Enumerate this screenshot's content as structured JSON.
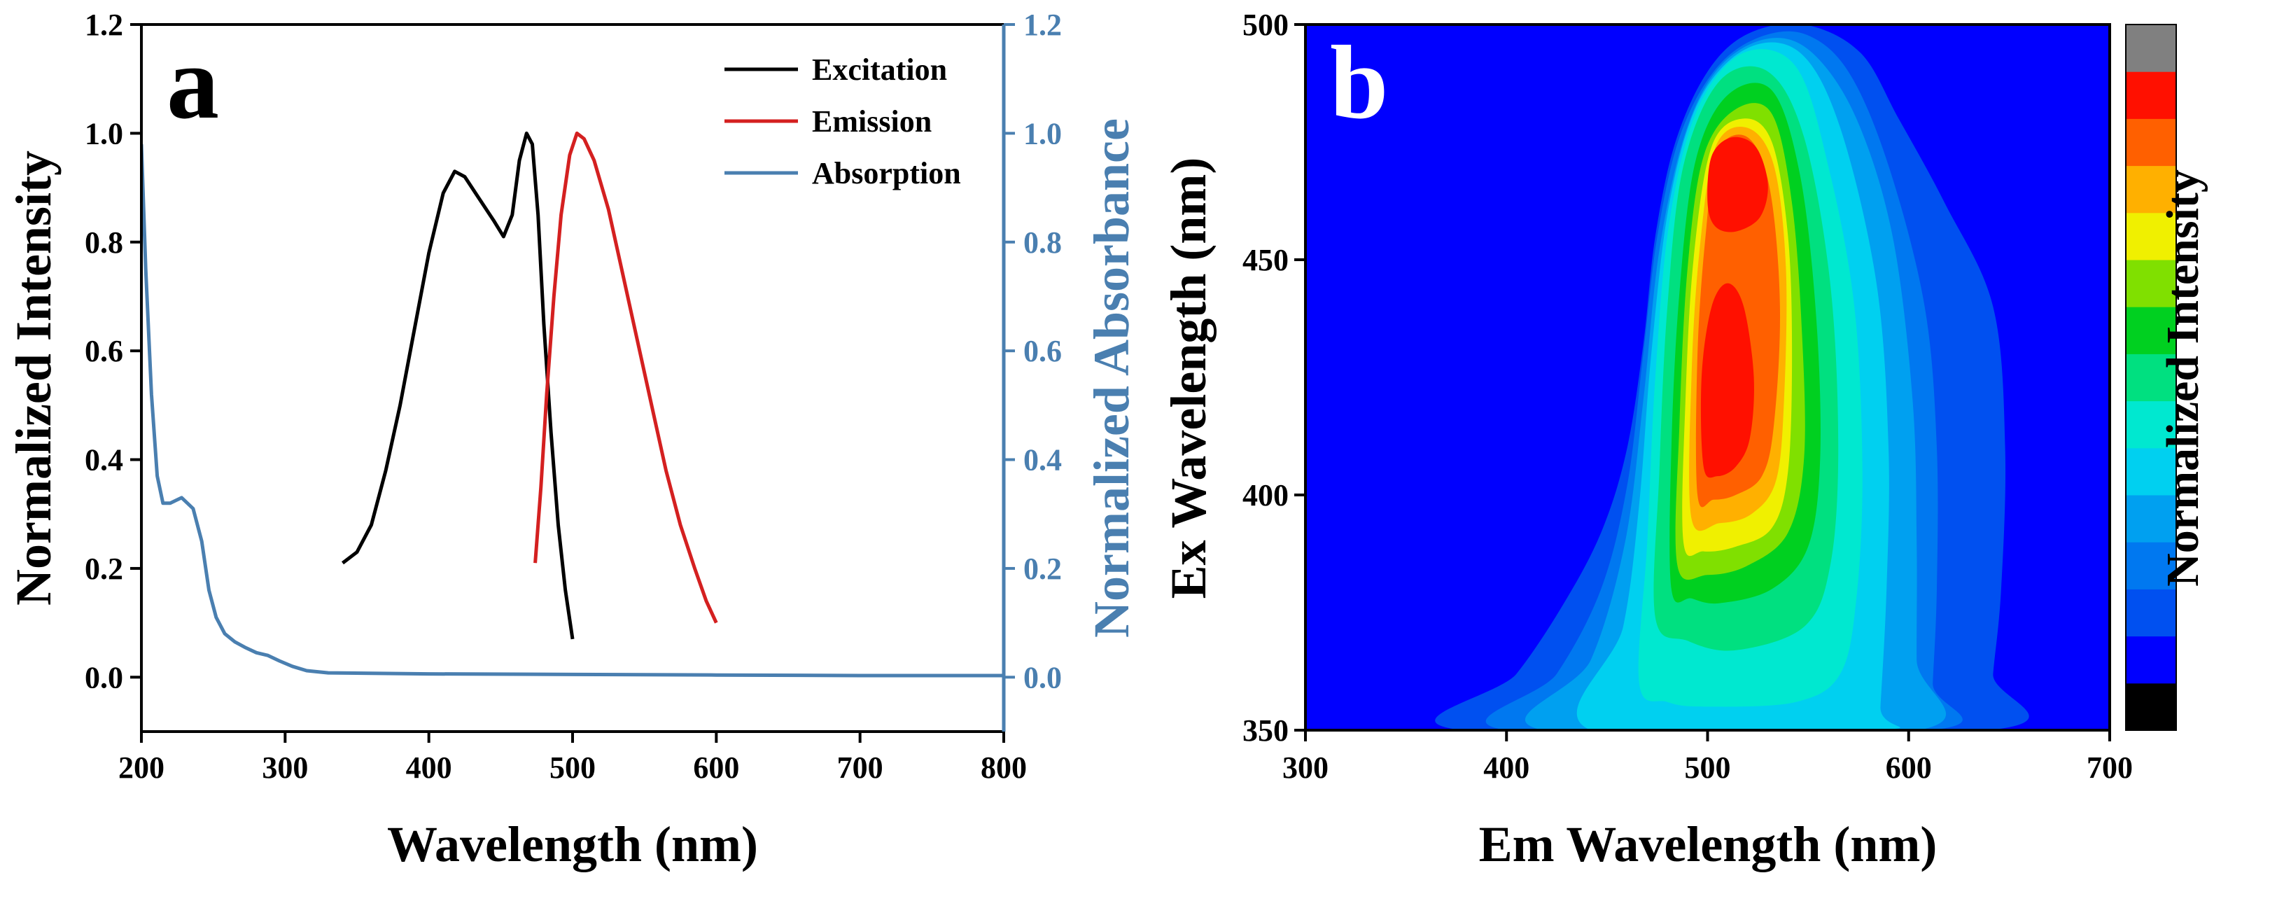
{
  "chart_data": [
    {
      "type": "line",
      "panel_label": "a",
      "xlabel": "Wavelength (nm)",
      "ylabel": "Normalized Intensity",
      "y2label": "Normalized Absorbance",
      "xlim": [
        200,
        800
      ],
      "ylim": [
        -0.1,
        1.2
      ],
      "y2lim": [
        -0.1,
        1.2
      ],
      "xticks": [
        "200",
        "300",
        "400",
        "500",
        "600",
        "700",
        "800"
      ],
      "yticks": [
        "0.0",
        "0.2",
        "0.4",
        "0.6",
        "0.8",
        "1.0",
        "1.2"
      ],
      "y2ticks": [
        "0.0",
        "0.2",
        "0.4",
        "0.6",
        "0.8",
        "1.0",
        "1.2"
      ],
      "legend_position": "top-right",
      "colors": {
        "axis_right": "#4a7fb0",
        "text": "#000000"
      },
      "series": [
        {
          "name": "Excitation",
          "color": "#000000",
          "axis": "left",
          "points": [
            [
              340,
              0.21
            ],
            [
              350,
              0.23
            ],
            [
              360,
              0.28
            ],
            [
              370,
              0.38
            ],
            [
              380,
              0.5
            ],
            [
              390,
              0.64
            ],
            [
              400,
              0.78
            ],
            [
              410,
              0.89
            ],
            [
              418,
              0.93
            ],
            [
              425,
              0.92
            ],
            [
              435,
              0.88
            ],
            [
              445,
              0.84
            ],
            [
              452,
              0.81
            ],
            [
              458,
              0.85
            ],
            [
              463,
              0.95
            ],
            [
              468,
              1.0
            ],
            [
              472,
              0.98
            ],
            [
              476,
              0.85
            ],
            [
              480,
              0.65
            ],
            [
              485,
              0.45
            ],
            [
              490,
              0.28
            ],
            [
              495,
              0.16
            ],
            [
              500,
              0.07
            ]
          ]
        },
        {
          "name": "Emission",
          "color": "#d42020",
          "axis": "left",
          "points": [
            [
              474,
              0.21
            ],
            [
              478,
              0.35
            ],
            [
              482,
              0.52
            ],
            [
              487,
              0.7
            ],
            [
              492,
              0.85
            ],
            [
              498,
              0.96
            ],
            [
              503,
              1.0
            ],
            [
              508,
              0.99
            ],
            [
              515,
              0.95
            ],
            [
              525,
              0.86
            ],
            [
              535,
              0.74
            ],
            [
              545,
              0.62
            ],
            [
              555,
              0.5
            ],
            [
              565,
              0.38
            ],
            [
              575,
              0.28
            ],
            [
              585,
              0.2
            ],
            [
              593,
              0.14
            ],
            [
              600,
              0.1
            ]
          ]
        },
        {
          "name": "Absorption",
          "color": "#4a7fb0",
          "axis": "right",
          "points": [
            [
              200,
              0.98
            ],
            [
              203,
              0.75
            ],
            [
              207,
              0.52
            ],
            [
              211,
              0.37
            ],
            [
              215,
              0.32
            ],
            [
              220,
              0.32
            ],
            [
              228,
              0.33
            ],
            [
              236,
              0.31
            ],
            [
              242,
              0.25
            ],
            [
              247,
              0.16
            ],
            [
              252,
              0.11
            ],
            [
              258,
              0.08
            ],
            [
              265,
              0.065
            ],
            [
              272,
              0.055
            ],
            [
              280,
              0.045
            ],
            [
              288,
              0.04
            ],
            [
              296,
              0.03
            ],
            [
              305,
              0.02
            ],
            [
              315,
              0.012
            ],
            [
              330,
              0.008
            ],
            [
              400,
              0.006
            ],
            [
              500,
              0.005
            ],
            [
              600,
              0.004
            ],
            [
              700,
              0.003
            ],
            [
              800,
              0.003
            ]
          ]
        }
      ]
    },
    {
      "type": "heatmap",
      "panel_label": "b",
      "xlabel": "Em Wavelength (nm)",
      "ylabel": "Ex Wavelength (nm)",
      "colorbar_label": "Normalized Intensity",
      "xlim": [
        300,
        700
      ],
      "ylim": [
        350,
        500
      ],
      "xticks": [
        "300",
        "400",
        "500",
        "600",
        "700"
      ],
      "yticks": [
        "350",
        "400",
        "450",
        "500"
      ],
      "colorbar_colors": [
        "#000000",
        "#0000ff",
        "#0050f0",
        "#0078f0",
        "#00a0f0",
        "#00d0f0",
        "#00e8d0",
        "#00e080",
        "#00d020",
        "#80e000",
        "#f0f000",
        "#ffb000",
        "#ff6000",
        "#ff1000",
        "#808080"
      ],
      "background_color": "#0000ff",
      "peaks": [
        {
          "em": 510,
          "ex": 420,
          "intensity": 1.0
        },
        {
          "em": 513,
          "ex": 468,
          "intensity": 0.92
        }
      ]
    }
  ]
}
